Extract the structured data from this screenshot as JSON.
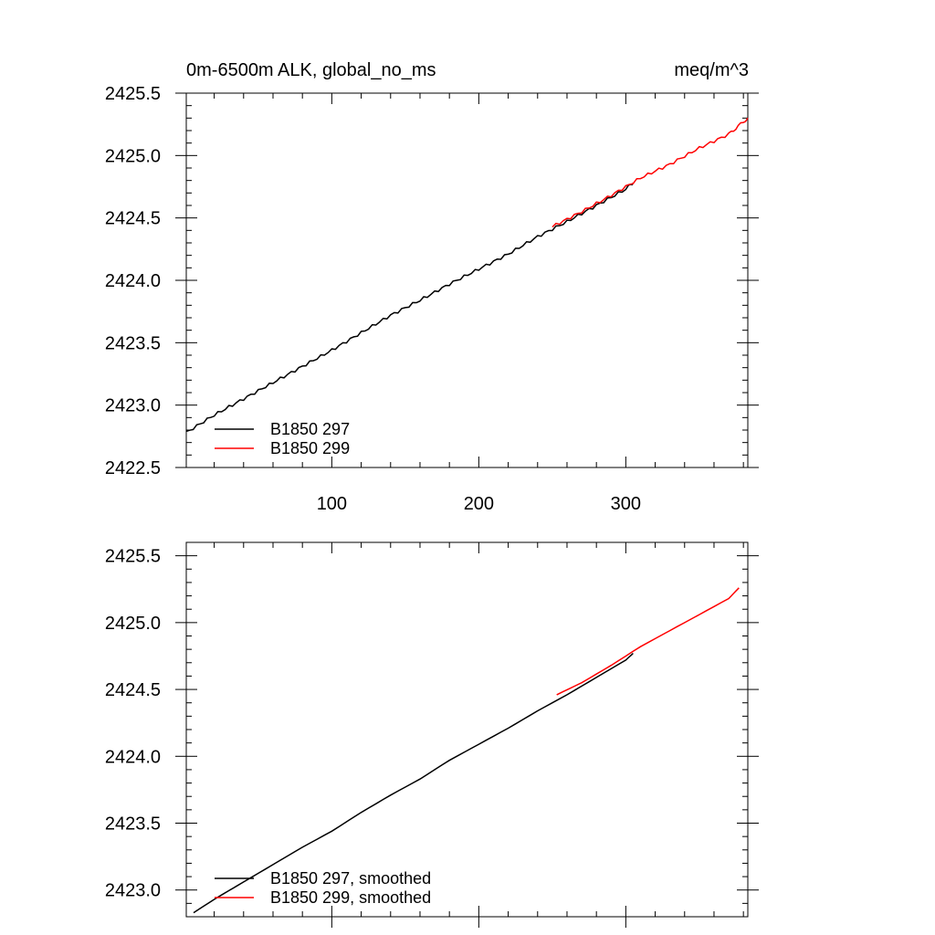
{
  "chart_data": [
    {
      "type": "line",
      "title_left": "0m-6500m ALK, global_no_ms",
      "title_right": "meq/m^3",
      "xlim": [
        1,
        383
      ],
      "ylim": [
        2422.5,
        2425.5
      ],
      "x_ticks": [
        100,
        200,
        300
      ],
      "y_ticks": [
        "2422.5",
        "2423.0",
        "2423.5",
        "2424.0",
        "2424.5",
        "2425.0",
        "2425.5"
      ],
      "legend_position": "bottom-left",
      "series": [
        {
          "name": "B1850 297",
          "color": "#000000",
          "x": [
            1,
            20,
            40,
            60,
            80,
            100,
            120,
            140,
            160,
            180,
            200,
            220,
            240,
            260,
            280,
            300,
            305
          ],
          "y": [
            2422.78,
            2422.92,
            2423.05,
            2423.18,
            2423.31,
            2423.44,
            2423.58,
            2423.72,
            2423.84,
            2423.97,
            2424.09,
            2424.21,
            2424.35,
            2424.47,
            2424.6,
            2424.73,
            2424.78
          ]
        },
        {
          "name": "B1850 299",
          "color": "#ff0000",
          "x": [
            250,
            270,
            290,
            310,
            330,
            350,
            370,
            383
          ],
          "y": [
            2424.43,
            2424.55,
            2424.68,
            2424.82,
            2424.93,
            2425.06,
            2425.17,
            2425.3
          ]
        }
      ]
    },
    {
      "type": "line",
      "xlim": [
        1,
        383
      ],
      "ylim": [
        2422.8,
        2425.6
      ],
      "y_ticks": [
        "2423.0",
        "2423.5",
        "2424.0",
        "2424.5",
        "2425.0",
        "2425.5"
      ],
      "legend_position": "bottom-left",
      "series": [
        {
          "name": "B1850 297, smoothed",
          "color": "#000000",
          "x": [
            6,
            20,
            40,
            60,
            80,
            100,
            120,
            140,
            160,
            180,
            200,
            220,
            240,
            260,
            280,
            300,
            305
          ],
          "y": [
            2422.83,
            2422.93,
            2423.06,
            2423.19,
            2423.32,
            2423.44,
            2423.58,
            2423.71,
            2423.83,
            2423.97,
            2424.09,
            2424.21,
            2424.34,
            2424.46,
            2424.59,
            2424.72,
            2424.77
          ]
        },
        {
          "name": "B1850 299, smoothed",
          "color": "#ff0000",
          "x": [
            253,
            270,
            290,
            310,
            330,
            350,
            370,
            377
          ],
          "y": [
            2424.46,
            2424.55,
            2424.68,
            2424.82,
            2424.94,
            2425.06,
            2425.18,
            2425.26
          ]
        }
      ]
    }
  ]
}
